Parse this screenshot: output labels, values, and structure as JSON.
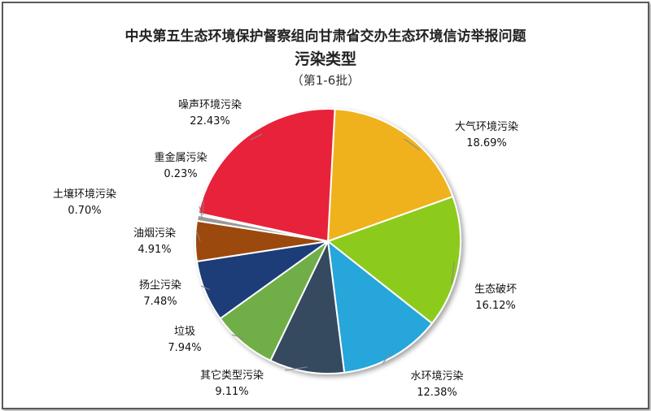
{
  "title": "中央第五生态环境保护督察组向甘肃省交办生态环境信访举报问题",
  "subtitle": "污染类型",
  "batch_note": "（第1-6批）",
  "chart_data": {
    "type": "pie",
    "title": "中央第五生态环境保护督察组向甘肃省交办生态环境信访举报问题",
    "subtitle": "污染类型",
    "note": "（第1-6批）",
    "slices": [
      {
        "name": "大气环境污染",
        "value": 18.69,
        "label": "18.69%",
        "color": "#F0B21F"
      },
      {
        "name": "生态破坏",
        "value": 16.12,
        "label": "16.12%",
        "color": "#8CCB1E"
      },
      {
        "name": "水环境污染",
        "value": 12.38,
        "label": "12.38%",
        "color": "#28A6DA"
      },
      {
        "name": "其它类型污染",
        "value": 9.11,
        "label": "9.11%",
        "color": "#34495E"
      },
      {
        "name": "垃圾",
        "value": 7.94,
        "label": "7.94%",
        "color": "#6FAF46"
      },
      {
        "name": "扬尘污染",
        "value": 7.48,
        "label": "7.48%",
        "color": "#1F3C78"
      },
      {
        "name": "油烟污染",
        "value": 4.91,
        "label": "4.91%",
        "color": "#9C4A0E"
      },
      {
        "name": "土壤环境污染",
        "value": 0.7,
        "label": "0.70%",
        "color": "#9A9A9A"
      },
      {
        "name": "重金属污染",
        "value": 0.23,
        "label": "0.23%",
        "color": "#D8D8D8"
      },
      {
        "name": "噪声环境污染",
        "value": 22.43,
        "label": "22.43%",
        "color": "#E8243A"
      }
    ]
  }
}
